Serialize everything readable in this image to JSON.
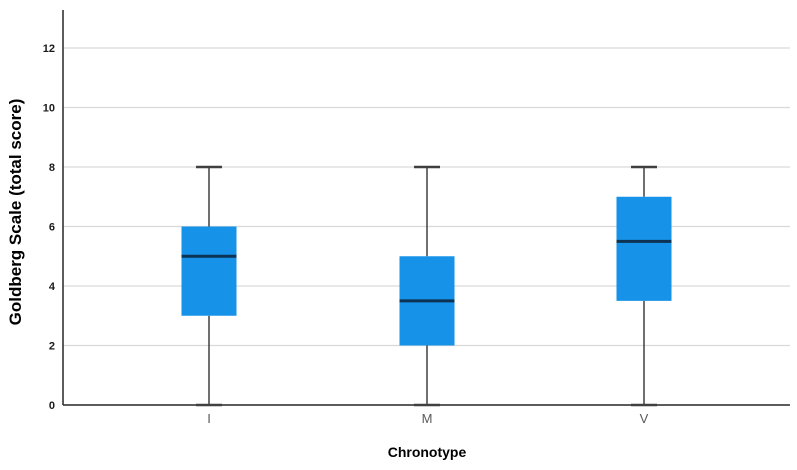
{
  "chart_data": {
    "type": "boxplot",
    "title": "",
    "xlabel": "Chronotype",
    "ylabel": "Goldberg Scale (total score)",
    "categories": [
      "I",
      "M",
      "V"
    ],
    "series": [
      {
        "category": "I",
        "min": 0,
        "q1": 3,
        "median": 5,
        "q3": 6,
        "max": 8
      },
      {
        "category": "M",
        "min": 0,
        "q1": 2,
        "median": 3.5,
        "q3": 5,
        "max": 8
      },
      {
        "category": "V",
        "min": 0,
        "q1": 3.5,
        "median": 5.5,
        "q3": 7,
        "max": 8
      }
    ],
    "yticks": [
      0,
      2,
      4,
      6,
      8,
      10,
      12
    ],
    "ylim": [
      0,
      13.3
    ],
    "grid": true,
    "legend": "none",
    "colors": {
      "box_fill": "#1692E8",
      "median_line": "#0C3353",
      "whisker": "#404040",
      "gridline": "#D9D9D9",
      "axis_line": "#262626",
      "tick_label": "#1A1A1A",
      "category_label": "#595959",
      "background": "#FFFFFF"
    }
  }
}
